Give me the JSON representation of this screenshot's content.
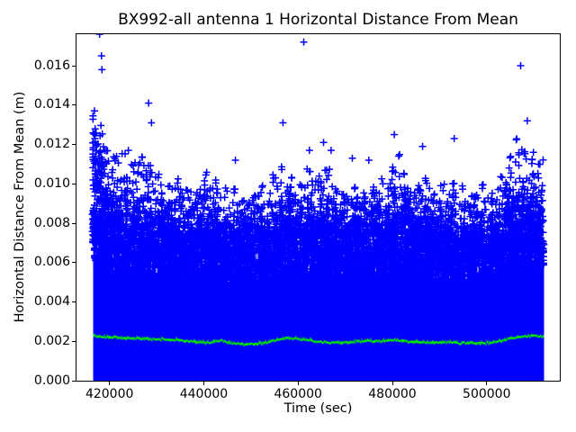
{
  "chart_data": {
    "type": "scatter",
    "title": "BX992-all antenna 1 Horizontal Distance From Mean",
    "xlabel": "Time (sec)",
    "ylabel": "Horizontal Distance From Mean (m)",
    "xlim": [
      413000,
      515500
    ],
    "ylim": [
      0,
      0.0176
    ],
    "xticks": [
      420000,
      440000,
      460000,
      480000,
      500000
    ],
    "xtick_labels": [
      "420000",
      "440000",
      "460000",
      "480000",
      "500000"
    ],
    "yticks": [
      0,
      0.002,
      0.004,
      0.006,
      0.008,
      0.01,
      0.012,
      0.014,
      0.016
    ],
    "ytick_labels": [
      "0.000",
      "0.002",
      "0.004",
      "0.006",
      "0.008",
      "0.010",
      "0.012",
      "0.014",
      "0.016"
    ],
    "grid": false,
    "legend": "none",
    "x_data_range": [
      416500,
      512000
    ],
    "series": [
      {
        "name": "horizontal-distance-scatter",
        "marker": "+",
        "color": "#0000ff",
        "solid_top": [
          [
            416500,
            0.0074
          ],
          [
            418500,
            0.0073
          ],
          [
            420000,
            0.0071
          ],
          [
            422000,
            0.0069
          ],
          [
            424000,
            0.0067
          ],
          [
            426000,
            0.0068
          ],
          [
            428000,
            0.0069
          ],
          [
            430000,
            0.0067
          ],
          [
            432000,
            0.0065
          ],
          [
            434000,
            0.0066
          ],
          [
            436000,
            0.0064
          ],
          [
            438000,
            0.0063
          ],
          [
            440000,
            0.0065
          ],
          [
            442000,
            0.0064
          ],
          [
            444000,
            0.0062
          ],
          [
            446000,
            0.0063
          ],
          [
            448000,
            0.0062
          ],
          [
            450000,
            0.0062
          ],
          [
            452000,
            0.0064
          ],
          [
            454000,
            0.0066
          ],
          [
            456000,
            0.0069
          ],
          [
            458000,
            0.0068
          ],
          [
            460000,
            0.0066
          ],
          [
            462000,
            0.0068
          ],
          [
            464000,
            0.0067
          ],
          [
            466000,
            0.0069
          ],
          [
            468000,
            0.0065
          ],
          [
            470000,
            0.0064
          ],
          [
            472000,
            0.0065
          ],
          [
            474000,
            0.0064
          ],
          [
            476000,
            0.0065
          ],
          [
            478000,
            0.0066
          ],
          [
            480000,
            0.0069
          ],
          [
            482000,
            0.0068
          ],
          [
            484000,
            0.0065
          ],
          [
            486000,
            0.0066
          ],
          [
            488000,
            0.0064
          ],
          [
            490000,
            0.0063
          ],
          [
            492000,
            0.0065
          ],
          [
            494000,
            0.0064
          ],
          [
            496000,
            0.0063
          ],
          [
            498000,
            0.0064
          ],
          [
            500000,
            0.0064
          ],
          [
            502000,
            0.0065
          ],
          [
            504000,
            0.0069
          ],
          [
            506000,
            0.0071
          ],
          [
            508000,
            0.007
          ],
          [
            510000,
            0.007
          ],
          [
            512000,
            0.0069
          ]
        ],
        "envelope": [
          [
            416900,
            0.0138
          ],
          [
            418200,
            0.0127
          ],
          [
            419500,
            0.0119
          ],
          [
            421000,
            0.0114
          ],
          [
            423000,
            0.0117
          ],
          [
            425000,
            0.0111
          ],
          [
            426800,
            0.0114
          ],
          [
            428500,
            0.0112
          ],
          [
            430500,
            0.0105
          ],
          [
            432500,
            0.01
          ],
          [
            434500,
            0.0103
          ],
          [
            436500,
            0.0098
          ],
          [
            438500,
            0.0096
          ],
          [
            440500,
            0.0106
          ],
          [
            442500,
            0.0102
          ],
          [
            444500,
            0.0098
          ],
          [
            446500,
            0.01
          ],
          [
            448500,
            0.0094
          ],
          [
            450500,
            0.0096
          ],
          [
            452500,
            0.01
          ],
          [
            454500,
            0.0106
          ],
          [
            456500,
            0.011
          ],
          [
            458500,
            0.0104
          ],
          [
            460500,
            0.01
          ],
          [
            462500,
            0.0108
          ],
          [
            464500,
            0.0104
          ],
          [
            466000,
            0.011
          ],
          [
            468000,
            0.0098
          ],
          [
            470000,
            0.0097
          ],
          [
            472000,
            0.01
          ],
          [
            474000,
            0.0096
          ],
          [
            476000,
            0.0099
          ],
          [
            478000,
            0.0103
          ],
          [
            480000,
            0.011
          ],
          [
            481500,
            0.0116
          ],
          [
            483500,
            0.0099
          ],
          [
            485500,
            0.01
          ],
          [
            487000,
            0.0105
          ],
          [
            489000,
            0.0097
          ],
          [
            491000,
            0.01
          ],
          [
            493000,
            0.0102
          ],
          [
            495000,
            0.0099
          ],
          [
            497000,
            0.0096
          ],
          [
            499000,
            0.01
          ],
          [
            501000,
            0.0096
          ],
          [
            503000,
            0.0104
          ],
          [
            505000,
            0.0115
          ],
          [
            506500,
            0.0124
          ],
          [
            508000,
            0.0117
          ],
          [
            509500,
            0.0115
          ],
          [
            510800,
            0.0113
          ],
          [
            511800,
            0.01
          ]
        ],
        "outliers": [
          [
            417900,
            0.0176
          ],
          [
            418300,
            0.0165
          ],
          [
            418400,
            0.0158
          ],
          [
            428300,
            0.0141
          ],
          [
            428900,
            0.0131
          ],
          [
            424000,
            0.0117
          ],
          [
            446700,
            0.0112
          ],
          [
            456800,
            0.0131
          ],
          [
            461200,
            0.0172
          ],
          [
            462400,
            0.0117
          ],
          [
            465400,
            0.0121
          ],
          [
            467000,
            0.0117
          ],
          [
            471500,
            0.0113
          ],
          [
            475000,
            0.0112
          ],
          [
            480400,
            0.0125
          ],
          [
            486400,
            0.0119
          ],
          [
            493100,
            0.0123
          ],
          [
            507200,
            0.016
          ],
          [
            508600,
            0.0132
          ],
          [
            509900,
            0.0116
          ]
        ]
      },
      {
        "name": "running-mean-line",
        "marker": ".",
        "color": "#00e600",
        "points": [
          [
            416500,
            0.00228
          ],
          [
            418000,
            0.00222
          ],
          [
            420000,
            0.0022
          ],
          [
            422000,
            0.00218
          ],
          [
            424000,
            0.00215
          ],
          [
            426000,
            0.00214
          ],
          [
            428000,
            0.00212
          ],
          [
            430000,
            0.0021
          ],
          [
            432000,
            0.00208
          ],
          [
            434000,
            0.00205
          ],
          [
            436000,
            0.002
          ],
          [
            438000,
            0.00198
          ],
          [
            440000,
            0.00192
          ],
          [
            442000,
            0.00198
          ],
          [
            443500,
            0.00205
          ],
          [
            445000,
            0.00195
          ],
          [
            446500,
            0.00188
          ],
          [
            448000,
            0.00185
          ],
          [
            450000,
            0.00186
          ],
          [
            452000,
            0.0019
          ],
          [
            454000,
            0.00198
          ],
          [
            456000,
            0.00208
          ],
          [
            457500,
            0.00215
          ],
          [
            459000,
            0.00212
          ],
          [
            461000,
            0.00208
          ],
          [
            463000,
            0.00204
          ],
          [
            465000,
            0.00196
          ],
          [
            467000,
            0.00192
          ],
          [
            469000,
            0.00192
          ],
          [
            471000,
            0.00196
          ],
          [
            473000,
            0.002
          ],
          [
            475000,
            0.00202
          ],
          [
            477000,
            0.002
          ],
          [
            479000,
            0.00205
          ],
          [
            480500,
            0.00208
          ],
          [
            482000,
            0.002
          ],
          [
            484000,
            0.00196
          ],
          [
            486000,
            0.00196
          ],
          [
            488000,
            0.00192
          ],
          [
            490000,
            0.00194
          ],
          [
            492000,
            0.00196
          ],
          [
            494000,
            0.00192
          ],
          [
            496000,
            0.0019
          ],
          [
            498000,
            0.00188
          ],
          [
            500000,
            0.0019
          ],
          [
            502000,
            0.00196
          ],
          [
            504000,
            0.00208
          ],
          [
            506000,
            0.00218
          ],
          [
            508000,
            0.00226
          ],
          [
            510000,
            0.00228
          ],
          [
            511800,
            0.00224
          ]
        ]
      }
    ]
  }
}
